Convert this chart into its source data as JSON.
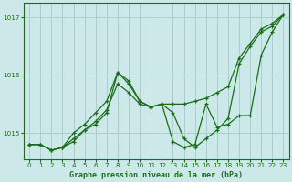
{
  "title": "Graphe pression niveau de la mer (hPa)",
  "bg_color": "#cce8e8",
  "grid_color": "#aacfcf",
  "line_color": "#1a6e1a",
  "xlim": [
    -0.5,
    23.5
  ],
  "ylim": [
    1014.55,
    1017.25
  ],
  "yticks": [
    1015,
    1016,
    1017
  ],
  "xticks": [
    0,
    1,
    2,
    3,
    4,
    5,
    6,
    7,
    8,
    9,
    10,
    11,
    12,
    13,
    14,
    15,
    16,
    17,
    18,
    19,
    20,
    21,
    22,
    23
  ],
  "series1": {
    "x": [
      0,
      1,
      2,
      3,
      4,
      5,
      6,
      7,
      8,
      9,
      10,
      11,
      12,
      13,
      14,
      15,
      16,
      17,
      18,
      19,
      20,
      21,
      22,
      23
    ],
    "y": [
      1014.8,
      1014.8,
      1014.7,
      1014.75,
      1014.85,
      1015.05,
      1015.15,
      1015.35,
      1016.05,
      1015.9,
      1015.55,
      1015.45,
      1015.5,
      1015.35,
      1014.9,
      1014.75,
      1014.9,
      1015.05,
      1015.25,
      1016.2,
      1016.5,
      1016.75,
      1016.85,
      1017.05
    ]
  },
  "series2": {
    "x": [
      0,
      1,
      2,
      3,
      4,
      5,
      6,
      7,
      8,
      9,
      10,
      11,
      12,
      13,
      14,
      15,
      16,
      17,
      18,
      19,
      20,
      21,
      22,
      23
    ],
    "y": [
      1014.8,
      1014.8,
      1014.7,
      1014.75,
      1014.9,
      1015.05,
      1015.2,
      1015.4,
      1015.85,
      1015.7,
      1015.5,
      1015.45,
      1015.5,
      1015.5,
      1015.5,
      1015.55,
      1015.6,
      1015.7,
      1015.8,
      1016.3,
      1016.55,
      1016.8,
      1016.9,
      1017.05
    ]
  },
  "series3": {
    "x": [
      0,
      1,
      2,
      3,
      4,
      5,
      6,
      7,
      8,
      9,
      10,
      11,
      12,
      13,
      14,
      15,
      16,
      17,
      18,
      19,
      20,
      21,
      22,
      23
    ],
    "y": [
      1014.8,
      1014.8,
      1014.7,
      1014.75,
      1015.0,
      1015.15,
      1015.35,
      1015.55,
      1016.05,
      1015.85,
      1015.55,
      1015.45,
      1015.5,
      1014.85,
      1014.75,
      1014.8,
      1015.5,
      1015.1,
      1015.15,
      1015.3,
      1015.3,
      1016.35,
      1016.75,
      1017.05
    ]
  }
}
